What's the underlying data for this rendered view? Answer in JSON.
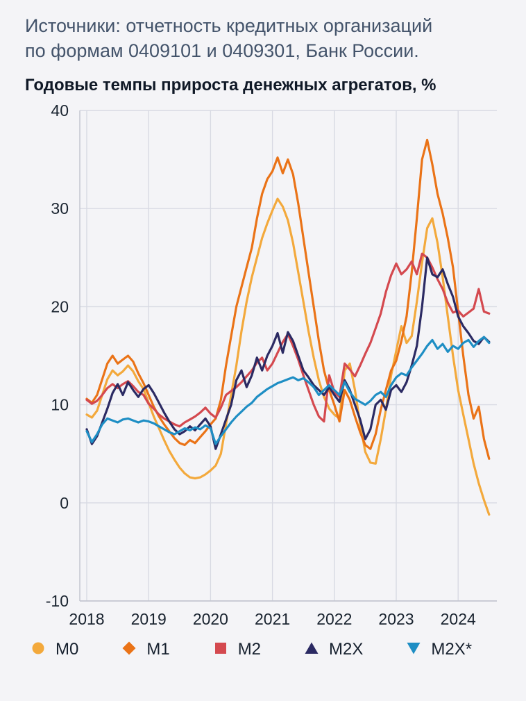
{
  "source": {
    "line1": "Источники: отчетность кредитных организаций",
    "line2": "по формам 0409101 и 0409301, Банк России."
  },
  "chart_data": {
    "type": "line",
    "title": "Годовые темпы прироста денежных агрегатов, %",
    "x_tick_labels": [
      "2018",
      "2019",
      "2020",
      "2021",
      "2022",
      "2023",
      "2024"
    ],
    "x_monthly_start": "2018-01",
    "x_monthly_end": "2024-07",
    "y_ticks": [
      40,
      30,
      20,
      10,
      0,
      -10
    ],
    "ylim": [
      -10,
      40
    ],
    "grid": true,
    "legend_position": "bottom",
    "colors": {
      "grid": "#d8dae3",
      "axis": "#c0c3ce",
      "tick_text": "#1a2430"
    },
    "series": [
      {
        "name": "М0",
        "marker": "circle",
        "color": "#f3a93c",
        "values": [
          9.0,
          8.7,
          9.4,
          11.0,
          12.6,
          13.5,
          13.0,
          13.4,
          14.0,
          13.4,
          12.4,
          11.6,
          10.2,
          8.8,
          7.6,
          6.4,
          5.3,
          4.4,
          3.6,
          3.0,
          2.6,
          2.5,
          2.6,
          2.9,
          3.3,
          3.8,
          5.0,
          8.0,
          11.0,
          14.0,
          17.5,
          20.5,
          23.0,
          25.0,
          27.0,
          28.5,
          29.8,
          31.0,
          30.2,
          28.8,
          26.5,
          23.5,
          20.5,
          17.5,
          14.8,
          12.5,
          10.8,
          9.6,
          9.0,
          8.6,
          13.5,
          14.2,
          11.5,
          8.0,
          5.2,
          4.1,
          4.0,
          6.5,
          9.5,
          13.0,
          15.5,
          18.0,
          16.3,
          17.0,
          20.5,
          24.5,
          28.0,
          29.0,
          26.5,
          23.0,
          19.0,
          15.0,
          11.5,
          9.0,
          6.5,
          4.0,
          2.0,
          0.3,
          -1.2
        ]
      },
      {
        "name": "М1",
        "marker": "diamond",
        "color": "#ea7317",
        "values": [
          10.6,
          10.2,
          11.0,
          12.6,
          14.2,
          15.0,
          14.2,
          14.6,
          15.0,
          14.4,
          13.2,
          12.2,
          11.0,
          9.8,
          8.8,
          8.0,
          7.3,
          6.6,
          6.1,
          5.9,
          6.4,
          6.1,
          6.7,
          7.3,
          8.0,
          8.6,
          10.5,
          14.0,
          17.0,
          20.0,
          22.0,
          24.0,
          26.0,
          29.0,
          31.5,
          33.0,
          33.8,
          35.2,
          33.6,
          35.0,
          33.5,
          30.5,
          27.0,
          23.5,
          20.0,
          16.5,
          13.5,
          11.5,
          10.0,
          8.3,
          11.5,
          10.5,
          8.8,
          7.2,
          5.9,
          5.5,
          7.0,
          9.5,
          11.5,
          13.5,
          14.5,
          16.5,
          19.0,
          23.5,
          29.0,
          35.0,
          37.0,
          34.5,
          31.5,
          29.5,
          27.0,
          24.0,
          19.5,
          15.0,
          11.0,
          8.6,
          9.8,
          6.5,
          4.5
        ]
      },
      {
        "name": "М2",
        "marker": "square",
        "color": "#d4494f",
        "values": [
          10.5,
          10.1,
          10.4,
          11.0,
          11.7,
          12.1,
          11.7,
          12.1,
          12.4,
          11.9,
          11.3,
          11.0,
          10.1,
          9.6,
          9.0,
          8.6,
          8.3,
          8.0,
          7.8,
          8.2,
          8.5,
          8.8,
          9.2,
          9.7,
          9.1,
          8.7,
          9.7,
          11.0,
          11.4,
          11.8,
          12.3,
          12.9,
          13.5,
          14.3,
          14.8,
          13.5,
          14.2,
          15.3,
          16.4,
          17.2,
          16.0,
          14.6,
          13.0,
          11.5,
          10.0,
          8.8,
          8.3,
          13.0,
          11.3,
          10.8,
          14.2,
          13.6,
          12.9,
          14.0,
          15.2,
          16.3,
          17.8,
          19.3,
          21.5,
          23.2,
          24.4,
          23.3,
          23.8,
          24.6,
          23.3,
          25.4,
          25.0,
          24.0,
          22.8,
          21.8,
          20.4,
          19.4,
          19.6,
          19.0,
          19.4,
          19.8,
          21.8,
          19.5,
          19.3
        ]
      },
      {
        "name": "М2Х",
        "marker": "triangle-up",
        "color": "#2b2a63",
        "values": [
          7.5,
          6.0,
          6.8,
          8.2,
          9.6,
          11.2,
          12.1,
          11.0,
          12.3,
          11.5,
          10.8,
          11.6,
          12.0,
          11.2,
          10.2,
          9.2,
          8.3,
          7.5,
          7.0,
          7.3,
          7.8,
          7.4,
          8.0,
          8.6,
          7.8,
          5.5,
          7.0,
          8.5,
          10.0,
          12.5,
          13.5,
          11.8,
          13.0,
          14.8,
          13.5,
          15.0,
          16.0,
          17.3,
          15.3,
          17.4,
          16.5,
          15.0,
          13.5,
          12.8,
          12.0,
          11.5,
          11.0,
          11.8,
          11.0,
          10.3,
          12.5,
          11.5,
          10.0,
          8.5,
          6.5,
          7.5,
          10.0,
          10.5,
          9.5,
          11.5,
          12.0,
          11.3,
          12.3,
          14.0,
          16.0,
          20.0,
          25.0,
          23.3,
          23.0,
          23.8,
          22.3,
          21.0,
          19.0,
          18.0,
          17.3,
          16.5,
          16.2,
          16.9,
          16.4
        ]
      },
      {
        "name": "М2Х*",
        "marker": "triangle-down",
        "color": "#1e8ec4",
        "values": [
          7.3,
          6.2,
          7.0,
          8.0,
          8.6,
          8.4,
          8.2,
          8.5,
          8.6,
          8.4,
          8.2,
          8.4,
          8.3,
          8.1,
          7.8,
          7.5,
          7.2,
          7.0,
          7.3,
          7.6,
          7.4,
          7.7,
          7.5,
          7.9,
          7.6,
          6.0,
          6.8,
          7.5,
          8.2,
          8.8,
          9.3,
          9.8,
          10.2,
          10.8,
          11.2,
          11.6,
          11.9,
          12.2,
          12.4,
          12.6,
          12.8,
          12.5,
          12.7,
          12.3,
          11.8,
          11.0,
          11.5,
          12.0,
          11.5,
          11.0,
          12.3,
          11.3,
          10.6,
          10.3,
          10.0,
          10.4,
          11.0,
          11.3,
          10.8,
          12.0,
          12.8,
          13.2,
          13.0,
          13.8,
          14.5,
          15.2,
          16.0,
          16.6,
          15.7,
          16.2,
          15.4,
          16.0,
          15.7,
          16.3,
          16.6,
          15.9,
          16.5,
          16.9,
          16.3
        ]
      }
    ]
  }
}
